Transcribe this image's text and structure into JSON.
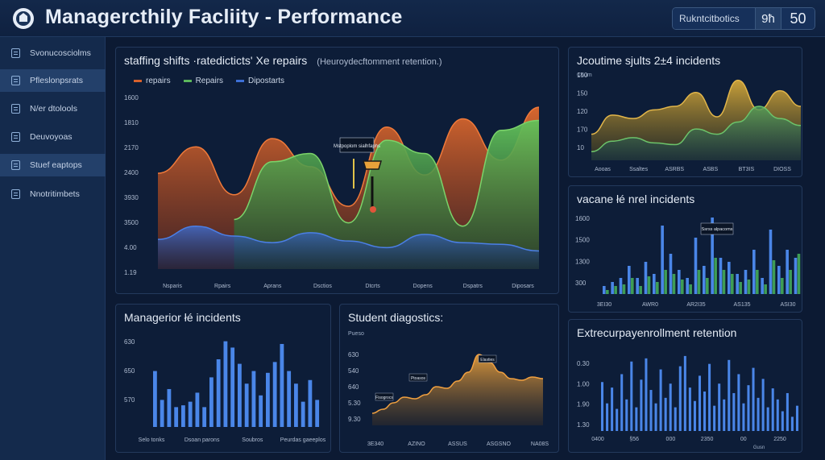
{
  "header": {
    "title": "Managercthily Facliity - Performance",
    "search_value": "Rukntcitbotics",
    "control_a": "9ħ",
    "control_b": "50"
  },
  "sidebar": {
    "items": [
      {
        "label": "Svonucosciolms"
      },
      {
        "label": "Pfleslonpsrats"
      },
      {
        "label": "N/er dtolools"
      },
      {
        "label": "Deuvoyoas"
      },
      {
        "label": "Stuef eaptops"
      },
      {
        "label": "Nnotritimbets"
      }
    ]
  },
  "colors": {
    "repairs_orange": "#d8612c",
    "repairs_green": "#5cb85c",
    "dispatch_blue": "#3d6fd6",
    "bar_blue": "#4a86e8",
    "bar_green": "#3e9d56",
    "gold": "#c9a23a"
  },
  "panels": {
    "main": {
      "title": "staffing shifts ·ratedicticts' Xe repairs",
      "subtitle": "(Heuroydecftomment retention.)",
      "legend": [
        "repairs",
        "Repairs",
        "Dipostarts"
      ],
      "annotation": "Mstpoplom sialhfaphs",
      "chart_data": {
        "type": "area",
        "title": "staffing shifts ·ratedicticts' Xe repairs",
        "x_labels": [
          "Nsparis",
          "Rpairs",
          "Aprans",
          "Dsctios",
          "Dtcrts",
          "Dopens",
          "Dspatrs",
          "Diposars"
        ],
        "y_labels": [
          "1600",
          "1810",
          "2170",
          "2400",
          "3930",
          "3500",
          "4.00",
          "1.19"
        ],
        "series": [
          {
            "name": "repairs",
            "color": "orange",
            "values": [
              0.58,
              0.74,
              0.45,
              0.79,
              0.62,
              0.38,
              0.86,
              0.57,
              0.91,
              0.66,
              0.98
            ]
          },
          {
            "name": "Repairs",
            "color": "green",
            "values": [
              0.0,
              0.0,
              0.3,
              0.65,
              0.7,
              0.28,
              0.78,
              0.7,
              0.26,
              0.84,
              0.9
            ]
          },
          {
            "name": "Dipostarts",
            "color": "blue",
            "values": [
              0.18,
              0.26,
              0.2,
              0.16,
              0.22,
              0.17,
              0.13,
              0.21,
              0.16,
              0.15,
              0.11
            ]
          }
        ]
      }
    },
    "top_right": {
      "title": "Jcoutime sjults 2±4 incidents",
      "axis_label": "Coum",
      "chart_data": {
        "type": "area",
        "x_labels": [
          "Aooas",
          "Ssaltes",
          "ASRBS",
          "ASBS",
          "BT3IS",
          "DIOSS"
        ],
        "y_labels": [
          "150",
          "150",
          "120",
          "170",
          "10"
        ],
        "series": [
          {
            "name": "gold",
            "values": [
              0.3,
              0.52,
              0.48,
              0.58,
              0.62,
              0.78,
              0.5,
              0.92,
              0.58,
              0.8,
              0.62
            ]
          },
          {
            "name": "green",
            "values": [
              0.1,
              0.22,
              0.26,
              0.2,
              0.18,
              0.36,
              0.3,
              0.44,
              0.62,
              0.48,
              0.4
            ]
          }
        ]
      }
    },
    "mid_right": {
      "title": "vacane łé nrel incidents",
      "annotation": "Ssrss alpacoms",
      "chart_data": {
        "type": "bar",
        "x_labels": [
          "3EI30",
          "AWR0",
          "AR2I35",
          "AS135",
          "ASI30"
        ],
        "y_labels": [
          "1600",
          "1500",
          "1300",
          "300"
        ],
        "series": [
          {
            "name": "blue",
            "values": [
              0.1,
              0.15,
              0.2,
              0.35,
              0.2,
              0.4,
              0.25,
              0.85,
              0.5,
              0.3,
              0.2,
              0.7,
              0.35,
              0.95,
              0.45,
              0.4,
              0.25,
              0.3,
              0.55,
              0.2,
              0.8,
              0.35,
              0.55,
              0.45
            ]
          },
          {
            "name": "green",
            "values": [
              0.05,
              0.1,
              0.12,
              0.2,
              0.1,
              0.22,
              0.15,
              0.3,
              0.25,
              0.18,
              0.12,
              0.3,
              0.2,
              0.45,
              0.3,
              0.25,
              0.15,
              0.18,
              0.3,
              0.12,
              0.42,
              0.2,
              0.3,
              0.5
            ]
          }
        ]
      }
    },
    "bottom_left": {
      "title": "Managerior łé incidents",
      "chart_data": {
        "type": "bar",
        "x_labels": [
          "Selo tonks",
          "Dsoan parons",
          "Soubros",
          "Peurdas gaeeplos"
        ],
        "y_labels": [
          "630",
          "650",
          "570"
        ],
        "values": [
          0.62,
          0.3,
          0.42,
          0.22,
          0.24,
          0.28,
          0.38,
          0.22,
          0.55,
          0.75,
          0.95,
          0.88,
          0.7,
          0.48,
          0.62,
          0.35,
          0.6,
          0.72,
          0.92,
          0.62,
          0.48,
          0.28,
          0.52,
          0.3
        ]
      }
    },
    "bottom_mid": {
      "title": "Student diagostics:",
      "axis_label": "Pueso",
      "annotation_a": "Fisogrocs",
      "annotation_b": "Ptoasos",
      "annotation_c": "Elasties",
      "chart_data": {
        "type": "area",
        "x_labels": [
          "3E340",
          "AZINO",
          "ASSUS",
          "ASGSNO",
          "NA08S"
        ],
        "y_labels": [
          "630",
          "540",
          "640",
          "5.30",
          "9.30"
        ],
        "values": [
          0.15,
          0.2,
          0.28,
          0.35,
          0.33,
          0.38,
          0.48,
          0.46,
          0.55,
          0.66,
          0.88,
          0.78,
          0.66,
          0.58,
          0.56,
          0.6,
          0.58
        ]
      }
    },
    "bottom_right": {
      "title": "Extrecurpayenrollment retention",
      "axis_label": "Gusn",
      "chart_data": {
        "type": "bar",
        "x_labels": [
          "0400",
          "§56",
          "000",
          "2350",
          "00",
          "2250"
        ],
        "y_labels": [
          "0.30",
          "1.00",
          "1.90",
          "1.30"
        ],
        "values": [
          0.62,
          0.35,
          0.55,
          0.28,
          0.72,
          0.4,
          0.88,
          0.3,
          0.65,
          0.92,
          0.52,
          0.35,
          0.78,
          0.42,
          0.6,
          0.3,
          0.82,
          0.95,
          0.55,
          0.38,
          0.7,
          0.5,
          0.85,
          0.32,
          0.6,
          0.4,
          0.9,
          0.48,
          0.72,
          0.35,
          0.58,
          0.8,
          0.42,
          0.66,
          0.3,
          0.54,
          0.4,
          0.25,
          0.48,
          0.18,
          0.32
        ]
      }
    }
  }
}
